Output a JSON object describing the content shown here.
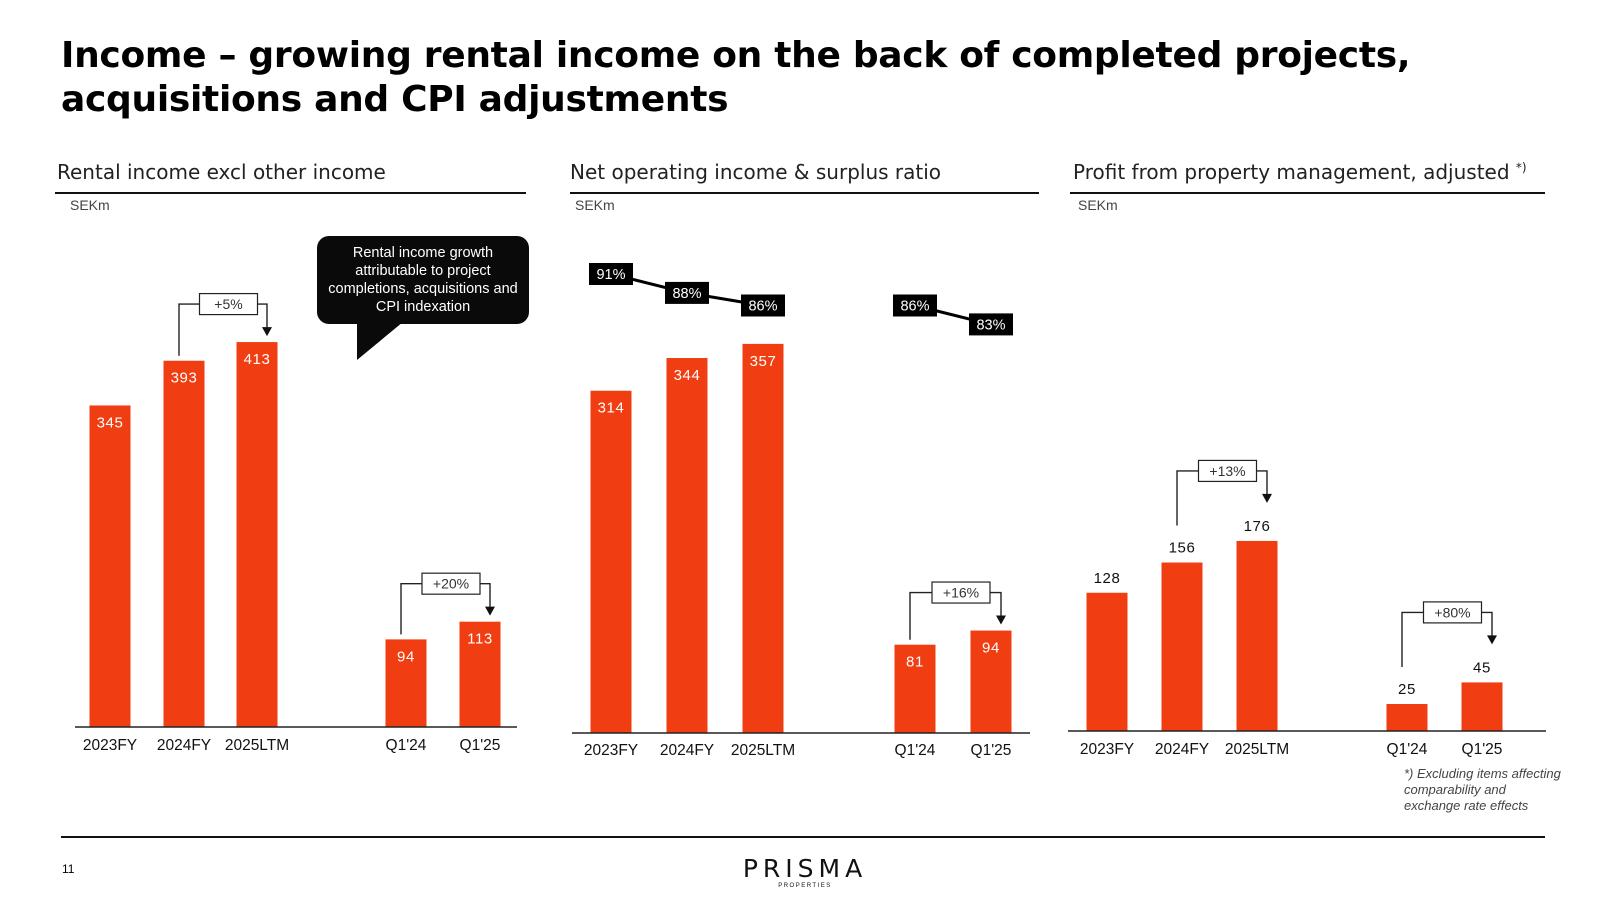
{
  "page": {
    "title": "Income – growing rental income on the back of completed projects, acquisitions and CPI adjustments",
    "page_number": "11",
    "logo_text": "PRISMA",
    "logo_subtext": "PROPERTIES",
    "footnote": "*) Excluding items affecting comparability and exchange rate effects",
    "callout": "Rental income growth attributable to project completions, acquisitions and CPI indexation"
  },
  "colors": {
    "bar": "#f03e12",
    "line": "#000000",
    "text": "#000000"
  },
  "chart_data": [
    {
      "type": "bar",
      "title": "Rental income excl other income",
      "unit": "SEKm",
      "categories": [
        "2023FY",
        "2024FY",
        "2025LTM",
        "Q1'24",
        "Q1'25"
      ],
      "values": [
        345,
        393,
        413,
        94,
        113
      ],
      "labels": [
        "345",
        "393",
        "413",
        "94",
        "113"
      ],
      "label_position": "inside",
      "ylim": [
        0,
        440
      ],
      "growth_annotations": [
        {
          "from": 1,
          "to": 2,
          "label": "+5%"
        },
        {
          "from": 3,
          "to": 4,
          "label": "+20%"
        }
      ]
    },
    {
      "type": "bar",
      "title": "Net operating income & surplus ratio",
      "unit": "SEKm",
      "categories": [
        "2023FY",
        "2024FY",
        "2025LTM",
        "Q1'24",
        "Q1'25"
      ],
      "values": [
        314,
        344,
        357,
        81,
        94
      ],
      "labels": [
        "314",
        "344",
        "357",
        "81",
        "94"
      ],
      "label_position": "inside",
      "ylim": [
        0,
        440
      ],
      "surplus_ratio": [
        91,
        88,
        86,
        86,
        83
      ],
      "surplus_ratio_labels": [
        "91%",
        "88%",
        "86%",
        "86%",
        "83%"
      ],
      "growth_annotations": [
        {
          "from": 3,
          "to": 4,
          "label": "+16%"
        }
      ]
    },
    {
      "type": "bar",
      "title": "Profit from property management, adjusted",
      "title_marker": "*)",
      "unit": "SEKm",
      "categories": [
        "2023FY",
        "2024FY",
        "2025LTM",
        "Q1'24",
        "Q1'25"
      ],
      "values": [
        128,
        156,
        176,
        25,
        45
      ],
      "labels": [
        "128",
        "156",
        "176",
        "25",
        "45"
      ],
      "label_position": "above",
      "ylim": [
        0,
        440
      ],
      "growth_annotations": [
        {
          "from": 1,
          "to": 2,
          "label": "+13%"
        },
        {
          "from": 3,
          "to": 4,
          "label": "+80%"
        }
      ]
    }
  ]
}
